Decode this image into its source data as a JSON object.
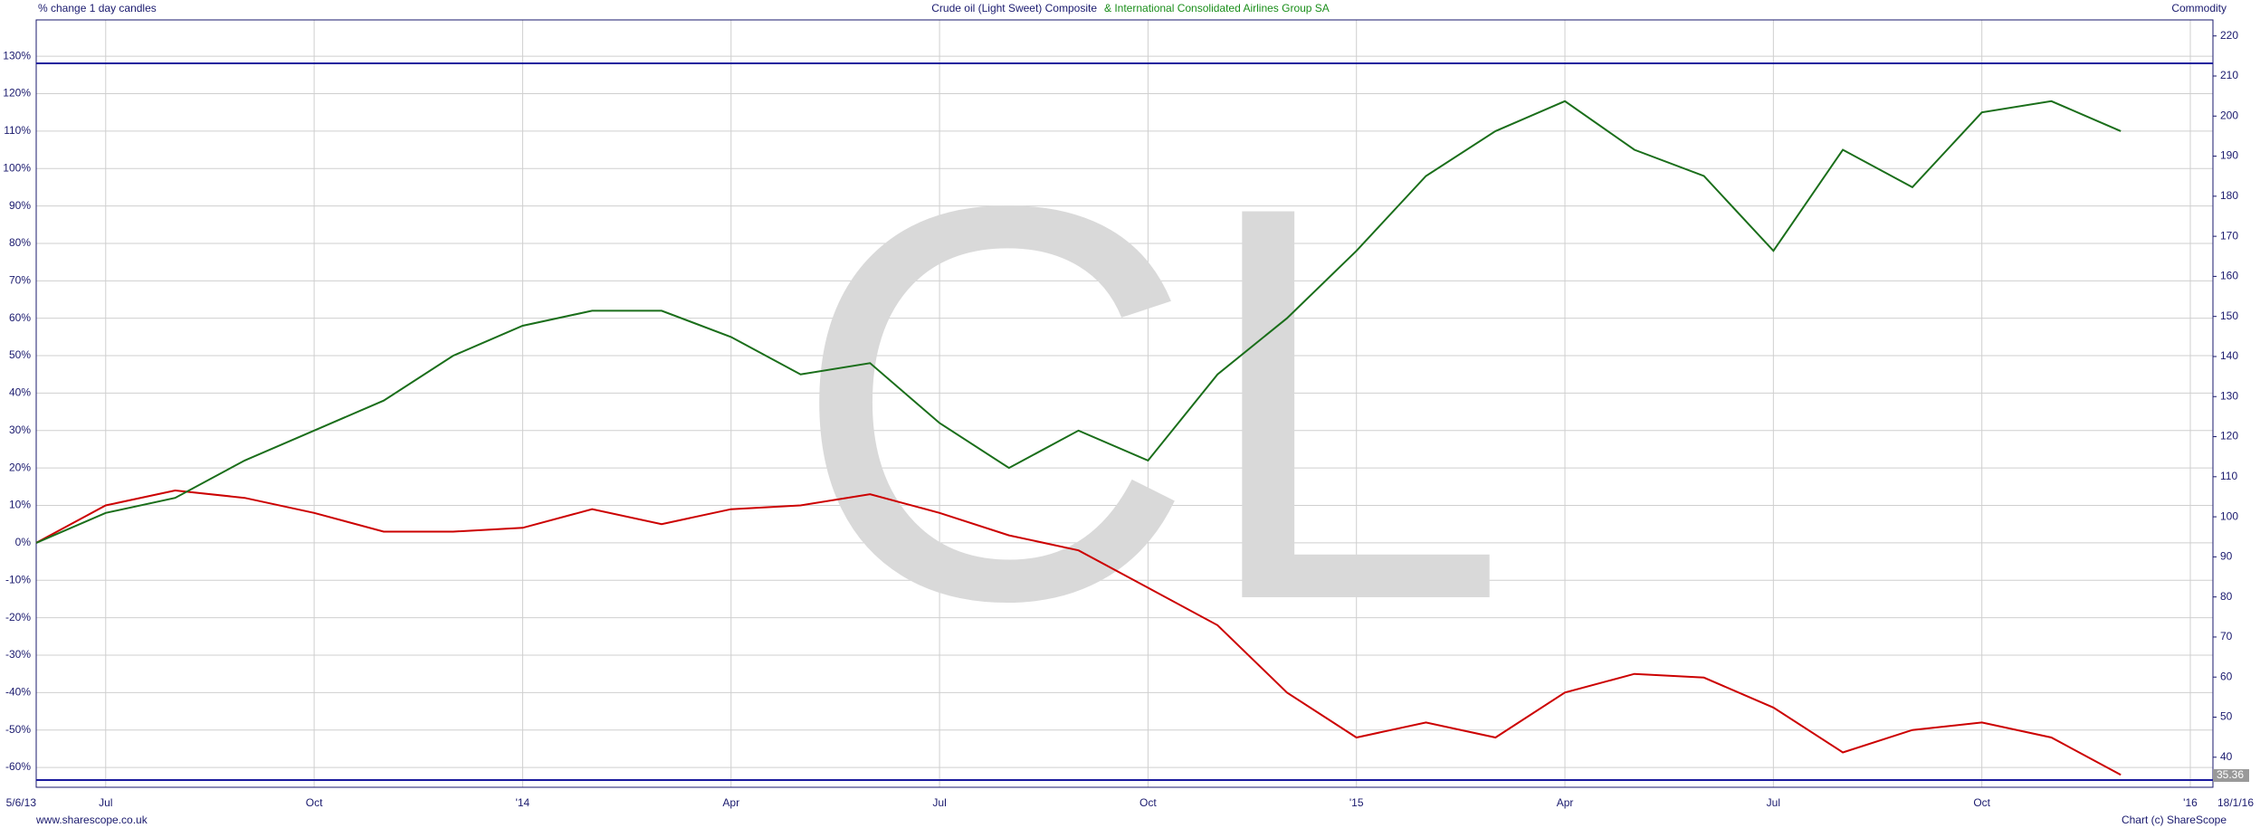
{
  "chart_data": {
    "type": "line",
    "title": "Crude oil (Light Sweet) Composite",
    "subtitle": "& International Consolidated Airlines Group SA",
    "top_left_label": "% change 1 day candles",
    "top_right_label": "Commodity",
    "watermark": "CL",
    "last_price": 35.36,
    "end_date_label": "18/1/16",
    "footer_left": "www.sharescope.co.uk",
    "footer_right": "Chart (c) ShareScope",
    "categories": [
      "5/6/13",
      "Jul",
      null,
      null,
      "Oct",
      null,
      null,
      "'14",
      null,
      null,
      "Apr",
      null,
      null,
      "Jul",
      null,
      null,
      "Oct",
      null,
      null,
      "'15",
      null,
      null,
      "Apr",
      null,
      null,
      "Jul",
      null,
      null,
      "Oct",
      null,
      null,
      "'16"
    ],
    "series": [
      {
        "name": "Crude oil (Light Sweet) Composite",
        "color": "#cc0000",
        "values": [
          0,
          10,
          14,
          12,
          8,
          3,
          3,
          4,
          9,
          5,
          9,
          10,
          13,
          8,
          2,
          -2,
          -12,
          -22,
          -40,
          -52,
          -48,
          -52,
          -40,
          -35,
          -36,
          -44,
          -56,
          -50,
          -48,
          -52,
          -62,
          null
        ]
      },
      {
        "name": "& International Consolidated Airlines Group SA",
        "color": "#1a6e1a",
        "values": [
          0,
          8,
          12,
          22,
          30,
          38,
          50,
          58,
          62,
          62,
          55,
          45,
          48,
          32,
          20,
          30,
          22,
          45,
          60,
          78,
          98,
          110,
          118,
          105,
          98,
          78,
          105,
          95,
          115,
          118,
          110,
          null
        ]
      }
    ],
    "ylim": [
      -65.3,
      139.7
    ],
    "yticks": [
      {
        "value": -60,
        "label": "-60%"
      },
      {
        "value": -50,
        "label": "-50%"
      },
      {
        "value": -40,
        "label": "-40%"
      },
      {
        "value": -30,
        "label": "-30%"
      },
      {
        "value": -20,
        "label": "-20%"
      },
      {
        "value": -10,
        "label": "-10%"
      },
      {
        "value": 0,
        "label": "0%"
      },
      {
        "value": 10,
        "label": "10%"
      },
      {
        "value": 20,
        "label": "20%"
      },
      {
        "value": 30,
        "label": "30%"
      },
      {
        "value": 40,
        "label": "40%"
      },
      {
        "value": 50,
        "label": "50%"
      },
      {
        "value": 60,
        "label": "60%"
      },
      {
        "value": 70,
        "label": "70%"
      },
      {
        "value": 80,
        "label": "80%"
      },
      {
        "value": 90,
        "label": "90%"
      },
      {
        "value": 100,
        "label": "100%"
      },
      {
        "value": 110,
        "label": "110%"
      },
      {
        "value": 120,
        "label": "120%"
      },
      {
        "value": 130,
        "label": "130%"
      }
    ],
    "y2lim": [
      32.5,
      224
    ],
    "y2ticks": [
      40,
      50,
      60,
      70,
      80,
      90,
      100,
      110,
      120,
      130,
      140,
      150,
      160,
      170,
      180,
      190,
      200,
      210,
      220
    ],
    "grid": true
  }
}
